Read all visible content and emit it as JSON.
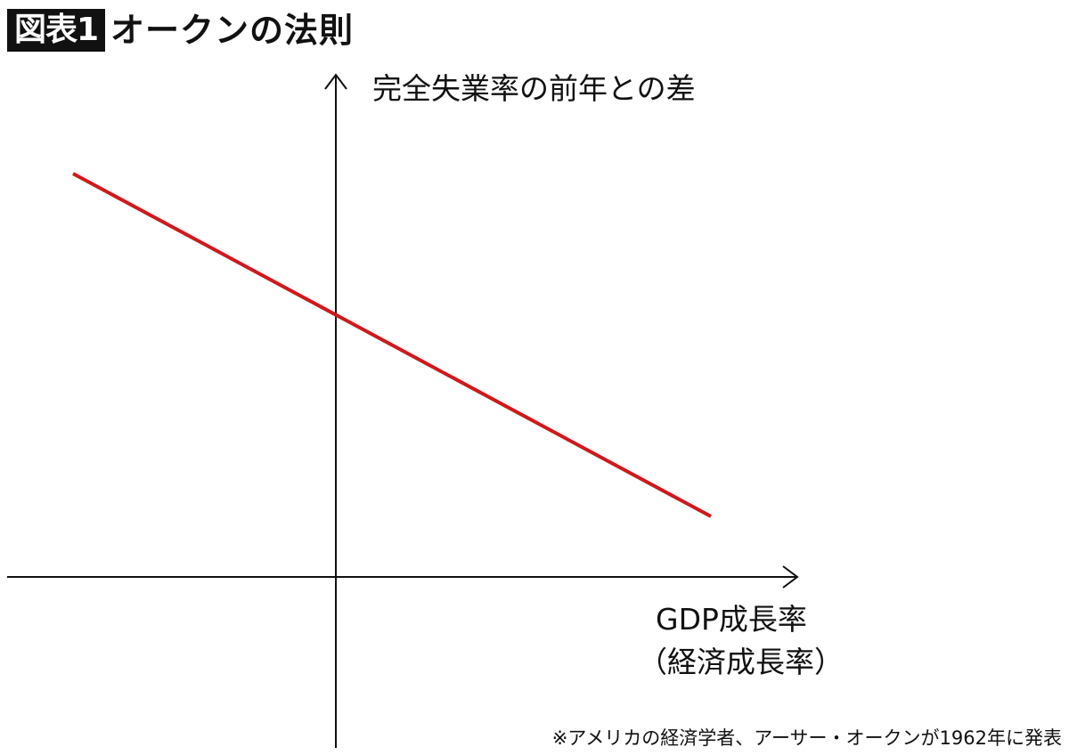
{
  "header": {
    "badge": "図表1",
    "title": "オークンの法則"
  },
  "axes": {
    "y_label": "完全失業率の前年との差",
    "x_label_line1": "GDP成長率",
    "x_label_line2": "（経済成長率）"
  },
  "colors": {
    "trend_line": "#d0181c",
    "axis": "#111111",
    "badge_bg": "#111111"
  },
  "footnote": "※アメリカの経済学者、アーサー・オークンが1962年に発表"
}
